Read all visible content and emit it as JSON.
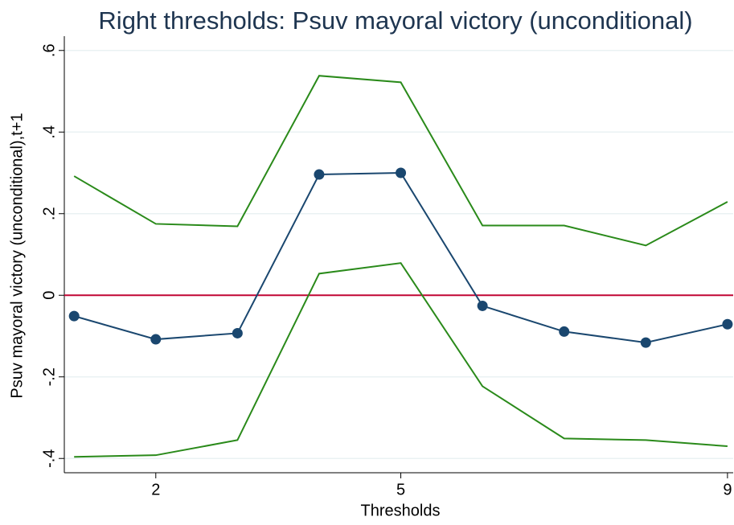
{
  "chart_data": {
    "type": "line",
    "title": "Right thresholds: Psuv mayoral victory (unconditional)",
    "x_label": "Thresholds",
    "y_label": "Psuv mayoral victory (unconditional),t+1",
    "x": [
      1,
      2,
      3,
      4,
      5,
      6,
      7,
      8,
      9
    ],
    "series": [
      {
        "color": "#1a476f",
        "markers": true,
        "values": [
          -0.051,
          -0.108,
          -0.093,
          0.296,
          0.3,
          -0.026,
          -0.089,
          -0.116,
          -0.071
        ]
      },
      {
        "color": "#2a8a1a",
        "markers": false,
        "values": [
          0.292,
          0.175,
          0.169,
          0.538,
          0.522,
          0.171,
          0.171,
          0.122,
          0.229
        ]
      },
      {
        "color": "#2a8a1a",
        "markers": false,
        "values": [
          -0.396,
          -0.392,
          -0.355,
          0.053,
          0.079,
          -0.223,
          -0.351,
          -0.355,
          -0.37
        ]
      }
    ],
    "hline": 0,
    "hline_color": "#c10534",
    "xlim": [
      0.88,
      9.07
    ],
    "xticks": [
      2,
      5,
      9
    ],
    "ylim": [
      -0.435,
      0.635
    ],
    "yticks": [
      {
        "value": -0.4,
        "label": "-.4"
      },
      {
        "value": -0.2,
        "label": "-.2"
      },
      0,
      {
        "value": 0.2,
        "label": ".2"
      },
      {
        "value": 0.4,
        "label": ".4"
      },
      {
        "value": 0.6,
        "label": ".6"
      }
    ],
    "grid": true
  }
}
